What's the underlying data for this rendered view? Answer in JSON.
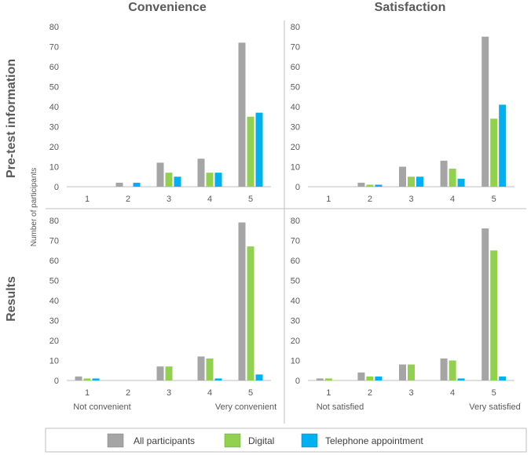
{
  "column_titles": [
    "Convenience",
    "Satisfaction"
  ],
  "row_titles": [
    "Pre-test information",
    "Results"
  ],
  "ylabel": "Number of participants",
  "anchors": {
    "convenience": {
      "low": "Not convenient",
      "high": "Very convenient"
    },
    "satisfaction": {
      "low": "Not satisfied",
      "high": "Very satisfied"
    }
  },
  "legend": [
    {
      "name": "All participants",
      "color": "#a5a5a5"
    },
    {
      "name": "Digital",
      "color": "#92d050"
    },
    {
      "name": "Telephone appointment",
      "color": "#00b0f0"
    }
  ],
  "colors": {
    "all": "#a5a5a5",
    "digital": "#92d050",
    "telephone": "#00b0f0",
    "grid": "#bfbfbf"
  },
  "chart_data": [
    {
      "type": "bar",
      "panel": "Pre-test information / Convenience",
      "categories": [
        "1",
        "2",
        "3",
        "4",
        "5"
      ],
      "ylim": [
        0,
        80
      ],
      "yticks": [
        0,
        10,
        20,
        30,
        40,
        50,
        60,
        70,
        80
      ],
      "series": [
        {
          "name": "All participants",
          "values": [
            0,
            2,
            12,
            14,
            72
          ]
        },
        {
          "name": "Digital",
          "values": [
            0,
            0,
            7,
            7,
            35
          ]
        },
        {
          "name": "Telephone appointment",
          "values": [
            0,
            2,
            5,
            7,
            37
          ]
        }
      ]
    },
    {
      "type": "bar",
      "panel": "Pre-test information / Satisfaction",
      "categories": [
        "1",
        "2",
        "3",
        "4",
        "5"
      ],
      "ylim": [
        0,
        80
      ],
      "yticks": [
        0,
        10,
        20,
        30,
        40,
        50,
        60,
        70,
        80
      ],
      "series": [
        {
          "name": "All participants",
          "values": [
            0,
            2,
            10,
            13,
            75
          ]
        },
        {
          "name": "Digital",
          "values": [
            0,
            1,
            5,
            9,
            34
          ]
        },
        {
          "name": "Telephone appointment",
          "values": [
            0,
            1,
            5,
            4,
            41
          ]
        }
      ]
    },
    {
      "type": "bar",
      "panel": "Results / Convenience",
      "categories": [
        "1",
        "2",
        "3",
        "4",
        "5"
      ],
      "ylim": [
        0,
        80
      ],
      "yticks": [
        0,
        10,
        20,
        30,
        40,
        50,
        60,
        70,
        80
      ],
      "series": [
        {
          "name": "All participants",
          "values": [
            2,
            0,
            7,
            12,
            79
          ]
        },
        {
          "name": "Digital",
          "values": [
            1,
            0,
            7,
            11,
            67
          ]
        },
        {
          "name": "Telephone appointment",
          "values": [
            1,
            0,
            0,
            1,
            3
          ]
        }
      ]
    },
    {
      "type": "bar",
      "panel": "Results / Satisfaction",
      "categories": [
        "1",
        "2",
        "3",
        "4",
        "5"
      ],
      "ylim": [
        0,
        80
      ],
      "yticks": [
        0,
        10,
        20,
        30,
        40,
        50,
        60,
        70,
        80
      ],
      "series": [
        {
          "name": "All participants",
          "values": [
            1,
            4,
            8,
            11,
            76
          ]
        },
        {
          "name": "Digital",
          "values": [
            1,
            2,
            8,
            10,
            65
          ]
        },
        {
          "name": "Telephone appointment",
          "values": [
            0,
            2,
            0,
            1,
            2
          ]
        }
      ]
    }
  ]
}
